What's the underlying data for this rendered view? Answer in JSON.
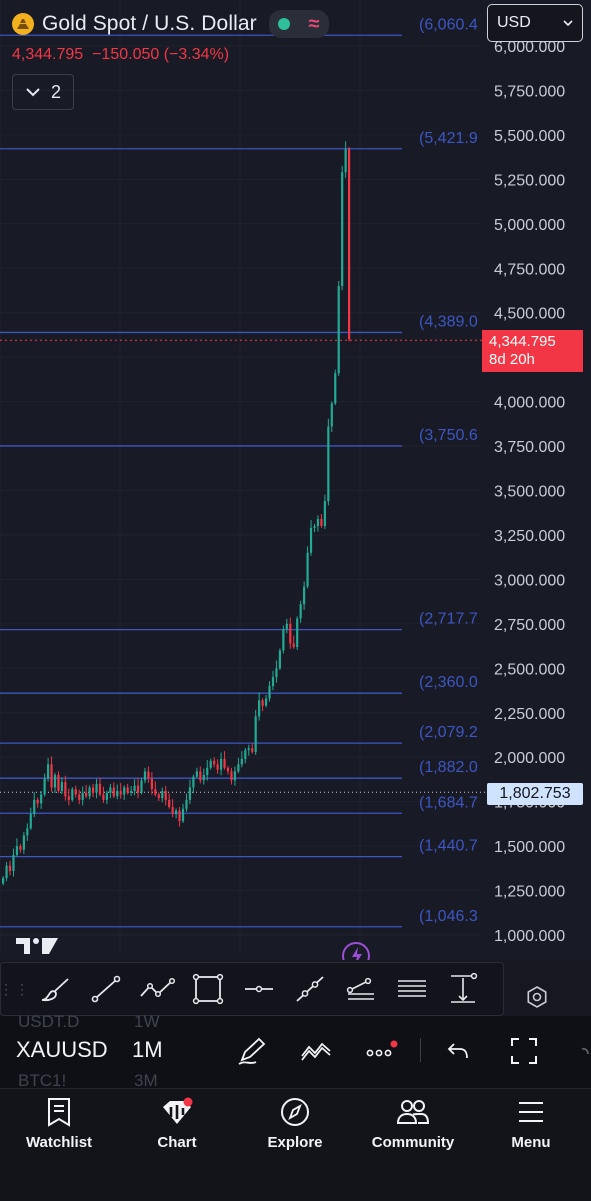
{
  "header": {
    "symbol_title": "Gold Spot / U.S. Dollar",
    "last_price": "4,344.795",
    "change": "−150.050",
    "change_pct": "(−3.34%)",
    "collapse_count": "2",
    "currency": "USD"
  },
  "chart": {
    "y_axis_labels": [
      "6,000.000",
      "5,750.000",
      "5,500.000",
      "5,250.000",
      "5,000.000",
      "4,750.000",
      "4,500.000",
      "4,000.000",
      "3,750.000",
      "3,500.000",
      "3,250.000",
      "3,000.000",
      "2,750.000",
      "2,500.000",
      "2,250.000",
      "2,000.000",
      "1,750.000",
      "1,500.000",
      "1,250.000",
      "1,000.000"
    ],
    "level_labels": [
      "(6,060.4",
      "(5,421.9",
      "(4,389.0",
      "(3,750.6",
      "(2,717.7",
      "(2,360.0",
      "(2,079.2",
      "(1,882.0",
      "(1,684.7",
      "(1,440.7",
      "(1,046.3"
    ],
    "price_badge_value": "4,344.795",
    "price_badge_countdown": "8d 20h",
    "line_badge_value": "1,802.753",
    "colors": {
      "up": "#22ab94",
      "down": "#f23645",
      "level_line": "#3d56c2",
      "background": "#181a25"
    }
  },
  "drawing_toolbar": {
    "tools": [
      "brush-icon",
      "trend-line-icon",
      "polyline-icon",
      "rectangle-icon",
      "horizontal-line-icon",
      "path-icon",
      "fib-fan-icon",
      "parallel-lines-icon",
      "measure-icon"
    ]
  },
  "symbol_bar": {
    "symbol": "XAUUSD",
    "timeframe": "1M",
    "ghost_above_symbol": "USDT.D",
    "ghost_above_timeframe": "1W",
    "ghost_below_symbol": "BTC1!",
    "ghost_below_timeframe": "3M"
  },
  "tabs": [
    {
      "label": "Watchlist",
      "icon": "bookmark-icon"
    },
    {
      "label": "Chart",
      "icon": "chart-icon"
    },
    {
      "label": "Explore",
      "icon": "compass-icon"
    },
    {
      "label": "Community",
      "icon": "people-icon"
    },
    {
      "label": "Menu",
      "icon": "hamburger-icon"
    }
  ]
}
